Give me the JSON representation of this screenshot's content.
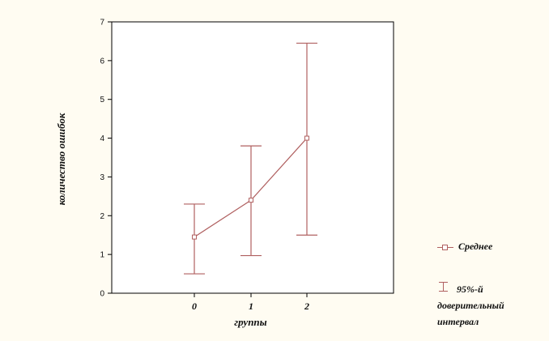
{
  "chart_data": {
    "type": "line",
    "title": "",
    "xlabel": "группы",
    "ylabel": "количество  ошибок",
    "categories": [
      "0",
      "1",
      "2"
    ],
    "ylim": [
      0,
      7
    ],
    "yticks": [
      "0",
      "1",
      "2",
      "3",
      "4",
      "5",
      "6",
      "7"
    ],
    "grid": false,
    "series": [
      {
        "name": "Среднее",
        "values": [
          1.45,
          2.4,
          4.0
        ],
        "ci_lower": [
          0.5,
          0.97,
          1.5
        ],
        "ci_upper": [
          2.3,
          3.8,
          6.45
        ]
      }
    ],
    "legend": {
      "position": "bottom-right",
      "mean_label": "Среднее",
      "ci_label_line1": "95%-й",
      "ci_label_line2": "доверительный",
      "ci_label_line3": "интервал"
    },
    "colors": {
      "line": "#b06060",
      "axis": "#000000"
    }
  }
}
